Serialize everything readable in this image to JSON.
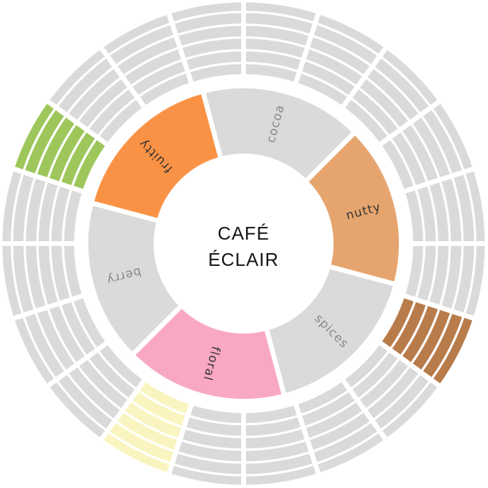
{
  "center": {
    "line1": "CAFÉ",
    "line2": "ÉCLAIR"
  },
  "colors": {
    "inactive": "#dadada",
    "inactive_text": "#888888",
    "active_text": "#333333",
    "background": "#ffffff"
  },
  "inner_segments": [
    {
      "label": "cocoa",
      "active": false,
      "color": "#dadada"
    },
    {
      "label": "nutty",
      "active": true,
      "color": "#e6a56e"
    },
    {
      "label": "spices",
      "active": false,
      "color": "#dadada"
    },
    {
      "label": "floral",
      "active": true,
      "color": "#f9a8c3"
    },
    {
      "label": "berry",
      "active": false,
      "color": "#dadada"
    },
    {
      "label": "fruitty",
      "active": true,
      "color": "#fa9245"
    }
  ],
  "outer_segments": [
    {
      "active": false,
      "color": "#dadada"
    },
    {
      "active": false,
      "color": "#dadada"
    },
    {
      "active": false,
      "color": "#dadada"
    },
    {
      "active": false,
      "color": "#dadada"
    },
    {
      "active": false,
      "color": "#dadada"
    },
    {
      "active": false,
      "color": "#dadada"
    },
    {
      "active": true,
      "color": "#b87b4a"
    },
    {
      "active": false,
      "color": "#dadada"
    },
    {
      "active": false,
      "color": "#dadada"
    },
    {
      "active": false,
      "color": "#dadada"
    },
    {
      "active": false,
      "color": "#dadada"
    },
    {
      "active": true,
      "color": "#faf5c0"
    },
    {
      "active": false,
      "color": "#dadada"
    },
    {
      "active": false,
      "color": "#dadada"
    },
    {
      "active": false,
      "color": "#dadada"
    },
    {
      "active": false,
      "color": "#dadada"
    },
    {
      "active": true,
      "color": "#9ec65b"
    },
    {
      "active": false,
      "color": "#dadada"
    },
    {
      "active": false,
      "color": "#dadada"
    },
    {
      "active": false,
      "color": "#dadada"
    }
  ]
}
